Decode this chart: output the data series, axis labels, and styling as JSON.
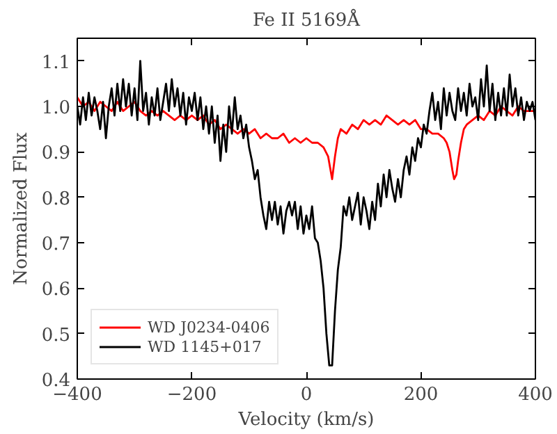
{
  "chart_data": {
    "type": "line",
    "title": "Fe II 5169Å",
    "xlabel": "Velocity (km/s)",
    "ylabel": "Normalized Flux",
    "xlim": [
      -400,
      400
    ],
    "ylim": [
      0.4,
      1.15
    ],
    "xticks": [
      -400,
      -200,
      0,
      200,
      400
    ],
    "yticks": [
      0.4,
      0.5,
      0.6,
      0.7,
      0.8,
      0.9,
      {
        "value": 1.0,
        "label": "1.0"
      },
      1.1
    ],
    "grid": false,
    "legend": "bottom left",
    "marker": "none",
    "line_style": "solid",
    "series": [
      {
        "name": "WD J0234-0406",
        "color": "#ff0000",
        "x": [
          -400,
          -390,
          -380,
          -370,
          -360,
          -350,
          -340,
          -330,
          -320,
          -310,
          -300,
          -290,
          -280,
          -270,
          -260,
          -250,
          -240,
          -230,
          -220,
          -210,
          -200,
          -190,
          -180,
          -170,
          -160,
          -150,
          -140,
          -130,
          -120,
          -110,
          -100,
          -90,
          -80,
          -70,
          -60,
          -50,
          -40,
          -30,
          -20,
          -10,
          0,
          10,
          20,
          30,
          38,
          45,
          50,
          55,
          60,
          70,
          80,
          90,
          100,
          110,
          120,
          130,
          140,
          150,
          160,
          170,
          180,
          190,
          200,
          210,
          220,
          230,
          240,
          245,
          250,
          255,
          258,
          262,
          265,
          270,
          275,
          280,
          290,
          300,
          310,
          320,
          330,
          340,
          350,
          360,
          370,
          380,
          390,
          400
        ],
        "values": [
          1.02,
          1.0,
          1.01,
          0.99,
          1.01,
          1.0,
          0.99,
          1.01,
          0.99,
          1.0,
          1.01,
          0.99,
          0.98,
          0.99,
          0.98,
          0.99,
          0.98,
          0.97,
          0.98,
          0.97,
          0.98,
          0.97,
          0.98,
          0.96,
          0.97,
          0.95,
          0.96,
          0.95,
          0.94,
          0.95,
          0.94,
          0.95,
          0.93,
          0.94,
          0.93,
          0.93,
          0.94,
          0.92,
          0.93,
          0.92,
          0.93,
          0.92,
          0.92,
          0.91,
          0.89,
          0.84,
          0.89,
          0.93,
          0.95,
          0.94,
          0.96,
          0.95,
          0.97,
          0.96,
          0.97,
          0.96,
          0.98,
          0.97,
          0.96,
          0.97,
          0.96,
          0.97,
          0.95,
          0.95,
          0.94,
          0.94,
          0.93,
          0.92,
          0.9,
          0.86,
          0.84,
          0.85,
          0.88,
          0.92,
          0.95,
          0.96,
          0.97,
          0.98,
          0.97,
          0.99,
          0.98,
          1.0,
          0.99,
          0.98,
          1.0,
          0.99,
          0.99,
          0.99
        ]
      },
      {
        "name": "WD 1145+017",
        "color": "#000000",
        "x": [
          -400,
          -395,
          -390,
          -385,
          -380,
          -375,
          -370,
          -365,
          -360,
          -355,
          -350,
          -345,
          -340,
          -335,
          -330,
          -325,
          -320,
          -315,
          -310,
          -305,
          -300,
          -295,
          -290,
          -285,
          -280,
          -275,
          -270,
          -265,
          -260,
          -255,
          -250,
          -245,
          -240,
          -235,
          -230,
          -225,
          -220,
          -215,
          -210,
          -205,
          -200,
          -195,
          -190,
          -185,
          -180,
          -175,
          -170,
          -165,
          -160,
          -155,
          -150,
          -145,
          -140,
          -135,
          -130,
          -125,
          -120,
          -115,
          -110,
          -105,
          -100,
          -95,
          -90,
          -85,
          -80,
          -75,
          -70,
          -65,
          -60,
          -55,
          -50,
          -45,
          -40,
          -35,
          -30,
          -25,
          -20,
          -15,
          -10,
          -5,
          0,
          5,
          10,
          15,
          20,
          25,
          30,
          35,
          40,
          45,
          50,
          55,
          60,
          65,
          70,
          75,
          80,
          85,
          90,
          95,
          100,
          105,
          110,
          115,
          120,
          125,
          130,
          135,
          140,
          145,
          150,
          155,
          160,
          165,
          170,
          175,
          180,
          185,
          190,
          195,
          200,
          205,
          210,
          215,
          220,
          225,
          230,
          235,
          240,
          245,
          250,
          255,
          260,
          265,
          270,
          275,
          280,
          285,
          290,
          295,
          300,
          305,
          310,
          315,
          320,
          325,
          330,
          335,
          340,
          345,
          350,
          355,
          360,
          365,
          370,
          375,
          380,
          385,
          390,
          395,
          400
        ],
        "values": [
          1.0,
          0.96,
          1.02,
          0.97,
          1.03,
          0.98,
          1.02,
          0.99,
          0.95,
          1.01,
          0.93,
          1.0,
          1.04,
          0.98,
          1.05,
          0.99,
          1.06,
          1.0,
          1.05,
          0.98,
          1.04,
          0.97,
          1.1,
          0.99,
          1.03,
          0.96,
          1.02,
          0.98,
          1.04,
          0.97,
          1.01,
          1.05,
          0.99,
          1.06,
          1.0,
          1.04,
          0.98,
          1.03,
          0.96,
          1.02,
          0.99,
          1.03,
          0.97,
          1.02,
          0.95,
          1.0,
          0.94,
          1.0,
          0.92,
          0.98,
          0.88,
          0.96,
          0.9,
          1.0,
          0.94,
          1.02,
          0.95,
          0.98,
          0.93,
          0.96,
          0.91,
          0.88,
          0.84,
          0.86,
          0.8,
          0.76,
          0.73,
          0.79,
          0.75,
          0.79,
          0.74,
          0.78,
          0.72,
          0.77,
          0.79,
          0.76,
          0.79,
          0.73,
          0.78,
          0.72,
          0.76,
          0.73,
          0.78,
          0.71,
          0.7,
          0.66,
          0.6,
          0.5,
          0.43,
          0.43,
          0.55,
          0.64,
          0.69,
          0.78,
          0.76,
          0.8,
          0.75,
          0.78,
          0.81,
          0.74,
          0.8,
          0.77,
          0.73,
          0.79,
          0.75,
          0.83,
          0.78,
          0.85,
          0.8,
          0.86,
          0.82,
          0.79,
          0.84,
          0.8,
          0.86,
          0.89,
          0.85,
          0.91,
          0.88,
          0.93,
          0.91,
          0.96,
          0.94,
          0.99,
          1.03,
          0.97,
          1.01,
          0.95,
          1.04,
          0.98,
          1.03,
          0.99,
          0.97,
          1.04,
          0.99,
          1.03,
          0.98,
          1.05,
          1.0,
          1.02,
          0.97,
          1.06,
          1.0,
          1.09,
          0.99,
          1.05,
          0.97,
          1.03,
          0.98,
          1.04,
          0.98,
          1.07,
          1.0,
          1.04,
          0.98,
          1.02,
          0.97,
          1.01,
          0.99,
          1.01,
          0.97
        ]
      }
    ]
  }
}
